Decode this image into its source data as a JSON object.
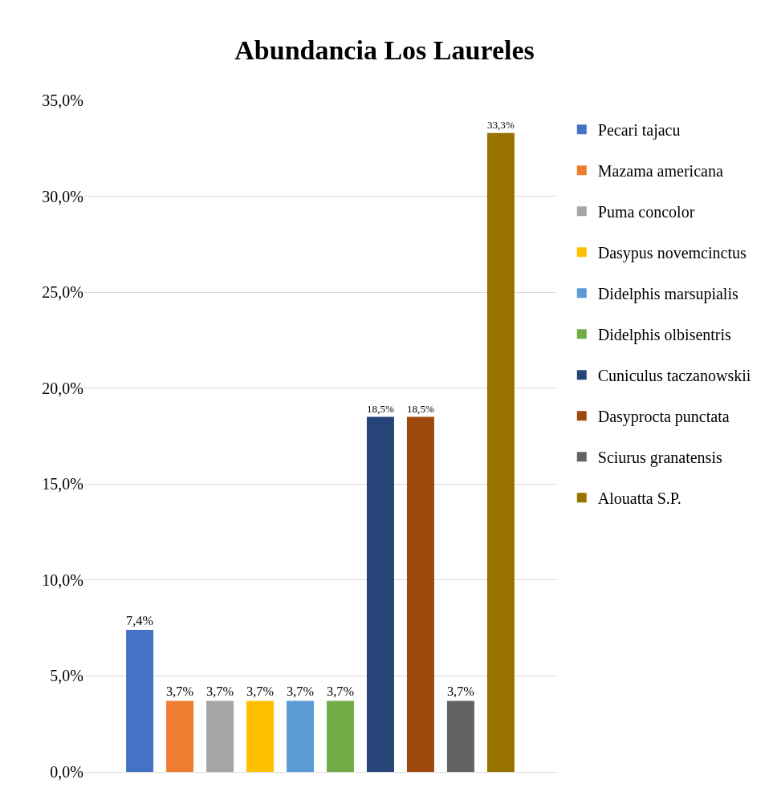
{
  "chart_data": {
    "type": "bar",
    "title": "Abundancia Los Laureles",
    "categories": [
      null
    ],
    "series": [
      {
        "name": "Pecari tajacu",
        "color": "#4472c4",
        "values": [
          7.4
        ],
        "value_labels": [
          "7,4%"
        ]
      },
      {
        "name": "Mazama americana",
        "color": "#ed7d31",
        "values": [
          3.7
        ],
        "value_labels": [
          "3,7%"
        ]
      },
      {
        "name": "Puma concolor",
        "color": "#a5a5a5",
        "values": [
          3.7
        ],
        "value_labels": [
          "3,7%"
        ]
      },
      {
        "name": "Dasypus novemcinctus",
        "color": "#ffc000",
        "values": [
          3.7
        ],
        "value_labels": [
          "3,7%"
        ]
      },
      {
        "name": "Didelphis marsupialis",
        "color": "#5b9bd5",
        "values": [
          3.7
        ],
        "value_labels": [
          "3,7%"
        ]
      },
      {
        "name": "Didelphis olbisentris",
        "color": "#70ad47",
        "values": [
          3.7
        ],
        "value_labels": [
          "3,7%"
        ]
      },
      {
        "name": "Cuniculus taczanowskii",
        "color": "#264478",
        "values": [
          18.5
        ],
        "value_labels": [
          "18,5%"
        ]
      },
      {
        "name": "Dasyprocta punctata",
        "color": "#9e480e",
        "values": [
          18.5
        ],
        "value_labels": [
          "18,5%"
        ]
      },
      {
        "name": "Sciurus granatensis",
        "color": "#636363",
        "values": [
          3.7
        ],
        "value_labels": [
          "3,7%"
        ]
      },
      {
        "name": "Alouatta S.P.",
        "color": "#997300",
        "values": [
          33.3
        ],
        "value_labels": [
          "33,3%"
        ]
      }
    ],
    "ylim": [
      0,
      35
    ],
    "yticks": [
      {
        "value": 0,
        "label": "0,0%"
      },
      {
        "value": 5,
        "label": "5,0%"
      },
      {
        "value": 10,
        "label": "10,0%"
      },
      {
        "value": 15,
        "label": "15,0%"
      },
      {
        "value": 20,
        "label": "20,0%"
      },
      {
        "value": 25,
        "label": "25,0%"
      },
      {
        "value": 30,
        "label": "30,0%"
      },
      {
        "value": 35,
        "label": "35,0%"
      }
    ],
    "grid": "y",
    "legend": "right",
    "tick_labels": "y"
  }
}
